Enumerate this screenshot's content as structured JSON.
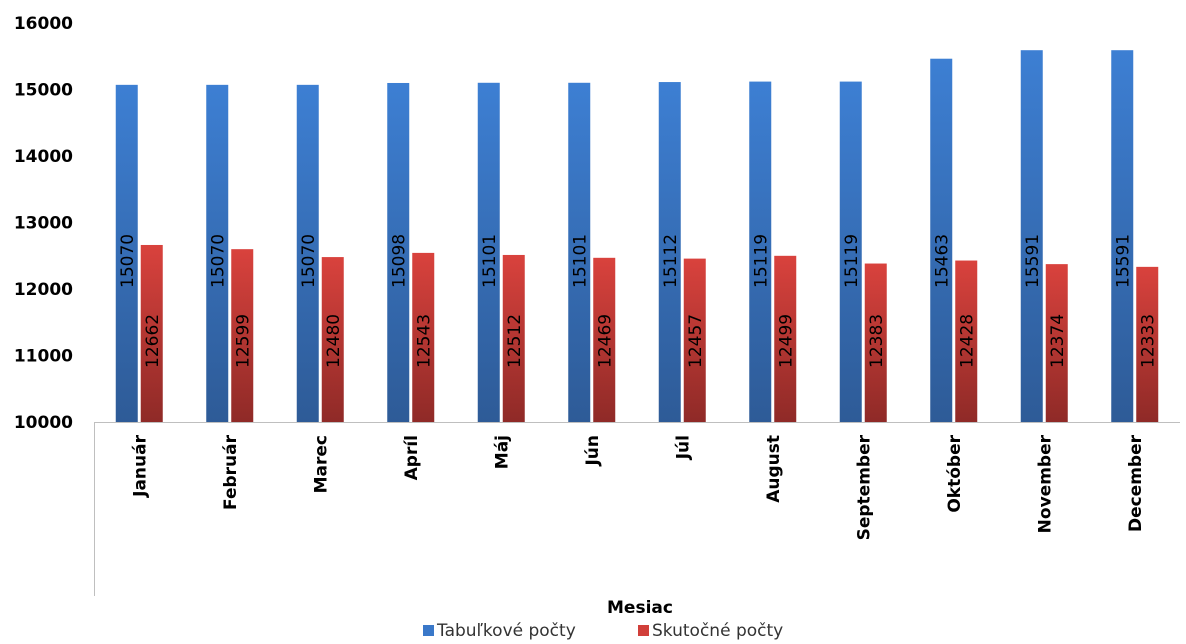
{
  "chart_data": {
    "type": "bar",
    "title": "",
    "xlabel": "Mesiac",
    "ylabel": "",
    "ylim": [
      10000,
      16000
    ],
    "yticks": [
      10000,
      11000,
      12000,
      13000,
      14000,
      15000,
      16000
    ],
    "grid": false,
    "legend_position": "bottom",
    "categories": [
      "Január",
      "Február",
      "Marec",
      "Apríl",
      "Máj",
      "Jún",
      "Júl",
      "August",
      "September",
      "Október",
      "November",
      "December"
    ],
    "series": [
      {
        "name": "Tabuľkové počty",
        "color": "#3a78c9",
        "values": [
          15070,
          15070,
          15070,
          15098,
          15101,
          15101,
          15112,
          15119,
          15119,
          15463,
          15591,
          15591
        ]
      },
      {
        "name": "Skutočné počty",
        "color": "#d13f3a",
        "values": [
          12662,
          12599,
          12480,
          12543,
          12512,
          12469,
          12457,
          12499,
          12383,
          12428,
          12374,
          12333
        ]
      }
    ]
  }
}
